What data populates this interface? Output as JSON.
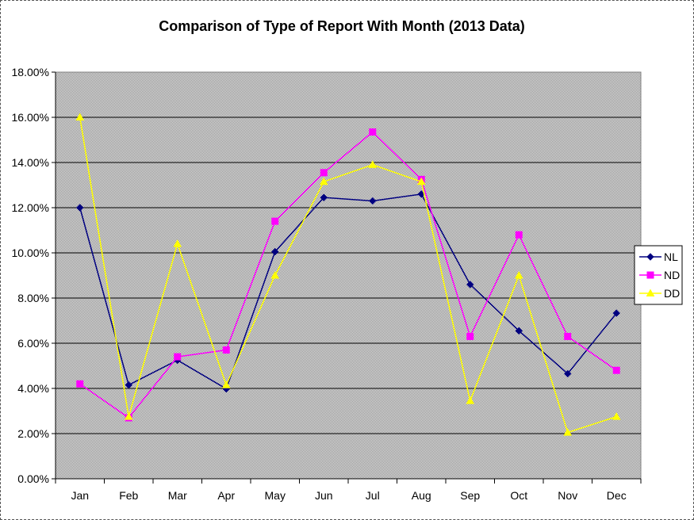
{
  "chart_data": {
    "type": "line",
    "title": "Comparison of Type of Report With Month (2013 Data)",
    "xlabel": "",
    "ylabel": "",
    "categories": [
      "Jan",
      "Feb",
      "Mar",
      "Apr",
      "May",
      "Jun",
      "Jul",
      "Aug",
      "Sep",
      "Oct",
      "Nov",
      "Dec"
    ],
    "ylim": [
      0,
      0.18
    ],
    "yticks": [
      "0.00%",
      "2.00%",
      "4.00%",
      "6.00%",
      "8.00%",
      "10.00%",
      "12.00%",
      "14.00%",
      "16.00%",
      "18.00%"
    ],
    "grid": true,
    "legend_position": "right",
    "plot_background": "#c0c0c0",
    "series": [
      {
        "name": "NL",
        "color": "#000080",
        "marker": "diamond",
        "values": [
          0.12,
          0.0415,
          0.0525,
          0.0398,
          0.1005,
          0.1245,
          0.123,
          0.126,
          0.086,
          0.0655,
          0.0465,
          0.0733
        ]
      },
      {
        "name": "ND",
        "color": "#ff00ff",
        "marker": "square",
        "values": [
          0.042,
          0.027,
          0.054,
          0.057,
          0.114,
          0.1355,
          0.1535,
          0.1325,
          0.063,
          0.108,
          0.063,
          0.048
        ]
      },
      {
        "name": "DD",
        "color": "#ffff00",
        "marker": "triangle",
        "values": [
          0.16,
          0.0275,
          0.104,
          0.0415,
          0.09,
          0.1315,
          0.139,
          0.1315,
          0.0345,
          0.09,
          0.0205,
          0.0275
        ]
      }
    ]
  }
}
